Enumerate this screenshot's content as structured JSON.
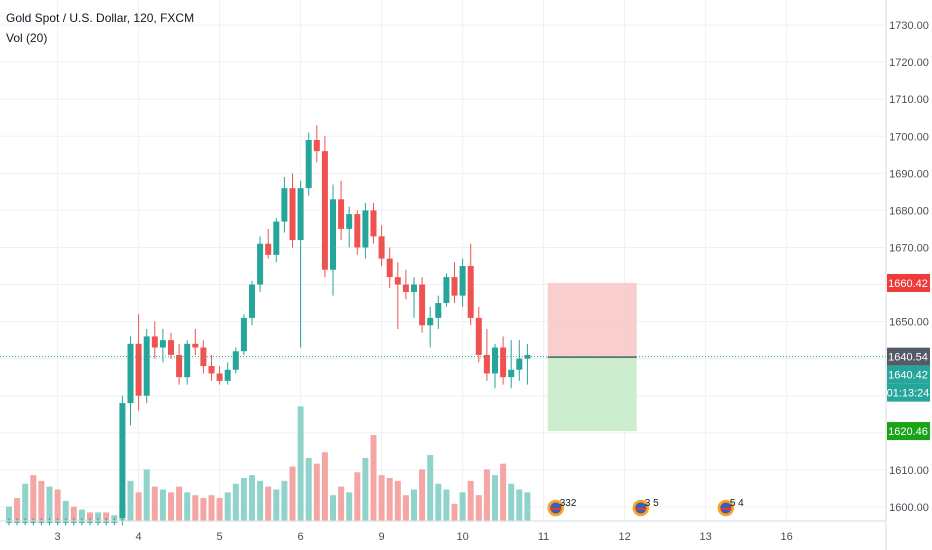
{
  "header": {
    "symbol_title": "Gold Spot / U.S. Dollar, 120, FXCM",
    "volume_indicator": "Vol (20)"
  },
  "colors": {
    "up": "#26a69a",
    "down": "#ef5350",
    "vol_up": "#8fd3cb",
    "vol_down": "#f4a6a4",
    "grid": "#eef0f3",
    "axis_text": "#4a4e59",
    "risk_zone": "#f8c9c9",
    "reward_zone": "#c8ecc9",
    "last_price_bg": "#555b66",
    "current_bg": "#26a69a",
    "stop_bg": "#ef3b3b",
    "target_bg": "#19a319"
  },
  "chart_data": {
    "type": "candlestick",
    "title": "Gold Spot / U.S. Dollar, 120, FXCM",
    "ylim": [
      1597,
      1733
    ],
    "y_ticks": [
      1600,
      1610,
      1620,
      1630,
      1640,
      1650,
      1660,
      1670,
      1680,
      1690,
      1700,
      1710,
      1720,
      1730
    ],
    "x_ticks": [
      {
        "label": "3",
        "bar": 6
      },
      {
        "label": "4",
        "bar": 16
      },
      {
        "label": "5",
        "bar": 26
      },
      {
        "label": "6",
        "bar": 36
      },
      {
        "label": "9",
        "bar": 46
      },
      {
        "label": "10",
        "bar": 56
      },
      {
        "label": "11",
        "bar": 66
      },
      {
        "label": "12",
        "bar": 76
      },
      {
        "label": "13",
        "bar": 86
      },
      {
        "label": "16",
        "bar": 96
      }
    ],
    "candles": [
      [
        1596,
        1597,
        1595,
        1596
      ],
      [
        1596,
        1597,
        1595,
        1596
      ],
      [
        1596,
        1597,
        1595,
        1596
      ],
      [
        1596,
        1597,
        1595,
        1596
      ],
      [
        1596,
        1597,
        1595,
        1596
      ],
      [
        1596,
        1597,
        1595,
        1596
      ],
      [
        1596,
        1597,
        1595,
        1596
      ],
      [
        1596,
        1597,
        1595,
        1596
      ],
      [
        1596,
        1597,
        1595,
        1596
      ],
      [
        1596,
        1597,
        1595,
        1596
      ],
      [
        1596,
        1597,
        1595,
        1596
      ],
      [
        1596,
        1597,
        1595,
        1596
      ],
      [
        1596,
        1597,
        1595,
        1596
      ],
      [
        1596,
        1597,
        1595,
        1596
      ],
      [
        1597,
        1630,
        1595,
        1628
      ],
      [
        1628,
        1646,
        1622,
        1644
      ],
      [
        1644,
        1652,
        1626,
        1630
      ],
      [
        1630,
        1648,
        1628,
        1646
      ],
      [
        1646,
        1650,
        1640,
        1643
      ],
      [
        1643,
        1648,
        1639,
        1645
      ],
      [
        1645,
        1647,
        1640,
        1641
      ],
      [
        1641,
        1644,
        1633,
        1635
      ],
      [
        1635,
        1645,
        1633,
        1644
      ],
      [
        1644,
        1648,
        1641,
        1643
      ],
      [
        1643,
        1645,
        1636,
        1638
      ],
      [
        1638,
        1641,
        1634,
        1636
      ],
      [
        1636,
        1638,
        1633,
        1634
      ],
      [
        1634,
        1639,
        1633,
        1637
      ],
      [
        1637,
        1643,
        1636,
        1642
      ],
      [
        1642,
        1652,
        1641,
        1651
      ],
      [
        1651,
        1661,
        1649,
        1660
      ],
      [
        1660,
        1673,
        1658,
        1671
      ],
      [
        1671,
        1675,
        1667,
        1668
      ],
      [
        1668,
        1678,
        1666,
        1677
      ],
      [
        1677,
        1689,
        1674,
        1686
      ],
      [
        1686,
        1690,
        1670,
        1672
      ],
      [
        1672,
        1688,
        1643,
        1686
      ],
      [
        1686,
        1701,
        1684,
        1699
      ],
      [
        1699,
        1703,
        1693,
        1696
      ],
      [
        1696,
        1700,
        1662,
        1664
      ],
      [
        1664,
        1687,
        1657,
        1683
      ],
      [
        1683,
        1688,
        1672,
        1675
      ],
      [
        1675,
        1681,
        1670,
        1679
      ],
      [
        1679,
        1680,
        1668,
        1670
      ],
      [
        1670,
        1682,
        1667,
        1680
      ],
      [
        1680,
        1682,
        1671,
        1673
      ],
      [
        1673,
        1676,
        1665,
        1667
      ],
      [
        1667,
        1670,
        1659,
        1662
      ],
      [
        1662,
        1666,
        1648,
        1660
      ],
      [
        1660,
        1664,
        1656,
        1658
      ],
      [
        1658,
        1662,
        1651,
        1660
      ],
      [
        1660,
        1662,
        1647,
        1649
      ],
      [
        1649,
        1654,
        1643,
        1651
      ],
      [
        1651,
        1657,
        1648,
        1655
      ],
      [
        1655,
        1663,
        1654,
        1662
      ],
      [
        1662,
        1666,
        1655,
        1657
      ],
      [
        1657,
        1667,
        1654,
        1665
      ],
      [
        1665,
        1671,
        1649,
        1651
      ],
      [
        1651,
        1654,
        1639,
        1641
      ],
      [
        1641,
        1648,
        1634,
        1636
      ],
      [
        1636,
        1644,
        1632,
        1643
      ],
      [
        1643,
        1646,
        1633,
        1635
      ],
      [
        1635,
        1645,
        1632,
        1637
      ],
      [
        1637,
        1645,
        1634,
        1640
      ],
      [
        1640,
        1644,
        1633,
        1641
      ]
    ],
    "volume": {
      "ylim": [
        0,
        45
      ],
      "values": [
        5,
        8,
        13,
        16,
        14,
        12,
        11,
        7,
        5,
        4,
        3,
        3,
        3,
        2,
        6,
        14,
        10,
        18,
        12,
        11,
        10,
        12,
        10,
        9,
        8,
        9,
        8,
        10,
        13,
        15,
        16,
        14,
        12,
        11,
        14,
        19,
        40,
        22,
        20,
        24,
        9,
        12,
        10,
        17,
        22,
        30,
        16,
        15,
        14,
        9,
        11,
        18,
        23,
        13,
        11,
        6,
        10,
        14,
        9,
        18,
        16,
        20,
        13,
        11,
        10
      ],
      "up": [
        1,
        0,
        1,
        0,
        0,
        1,
        0,
        1,
        0,
        1,
        0,
        1,
        0,
        1,
        1,
        1,
        0,
        1,
        0,
        1,
        0,
        0,
        1,
        0,
        0,
        0,
        0,
        1,
        1,
        1,
        1,
        1,
        0,
        1,
        1,
        0,
        1,
        1,
        0,
        0,
        1,
        0,
        1,
        0,
        1,
        0,
        0,
        0,
        0,
        0,
        1,
        0,
        1,
        1,
        1,
        0,
        1,
        0,
        0,
        0,
        1,
        0,
        1,
        1,
        1
      ]
    },
    "last_price": 1640.54,
    "position_tool": {
      "entry": 1640.42,
      "stop": 1660.42,
      "target": 1620.46,
      "start_bar": 67,
      "end_bar": 77
    },
    "price_labels": {
      "last": "1640.54",
      "current": "1640.42",
      "countdown": "01:13:24",
      "stop": "1660.42",
      "target": "1620.46"
    },
    "events": [
      {
        "bar": 67.5,
        "label": "332"
      },
      {
        "bar": 78,
        "label": "3 5"
      },
      {
        "bar": 88.5,
        "label": "5 4"
      }
    ]
  }
}
